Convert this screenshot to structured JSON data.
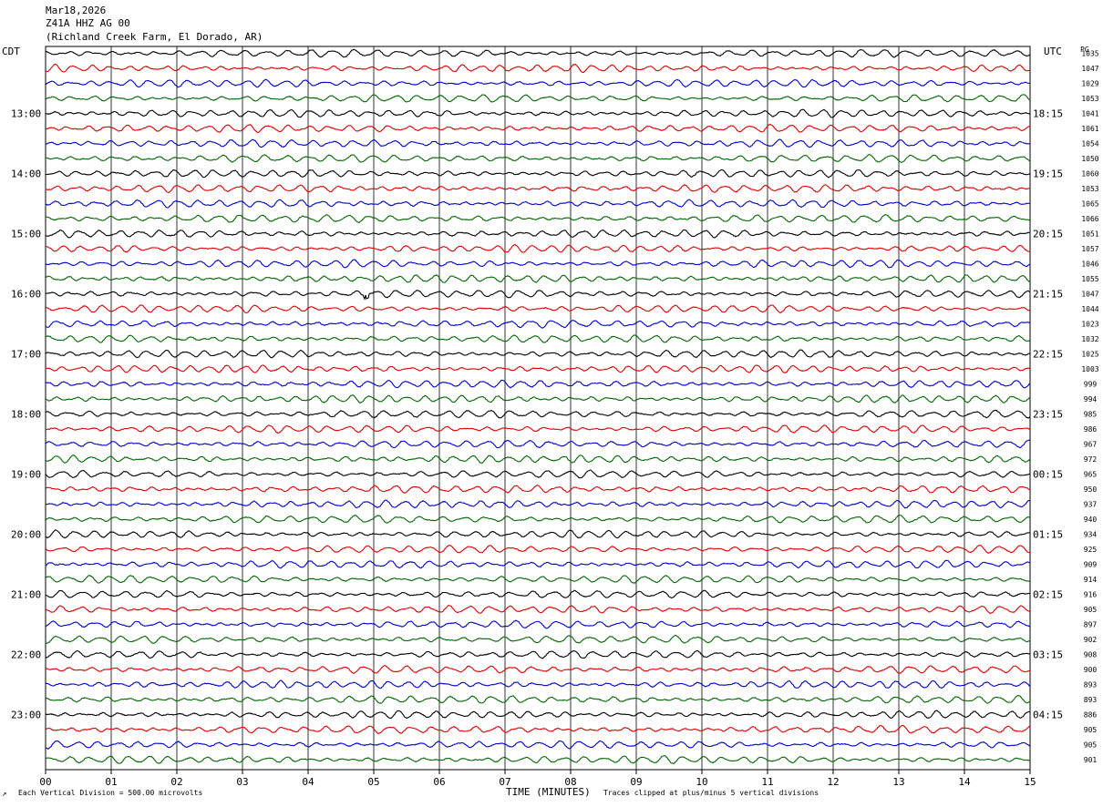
{
  "header": {
    "date": "Mar18,2026",
    "station": "Z41A HHZ AG 00",
    "location": "(Richland Creek Farm, El Dorado, AR)"
  },
  "left_timezone": "CDT",
  "right_timezone": "UTC",
  "right_corner_label": "PG",
  "footer": {
    "scale_note": "Each Vertical Division =  500.00 microvolts",
    "clip_note": "Traces clipped at plus/minus 5 vertical divisions",
    "corner_mark": "↗"
  },
  "colors": {
    "trace_cycle": [
      "#000000",
      "#dd0000",
      "#0000cc",
      "#006600"
    ],
    "grid": "#000000"
  },
  "chart_data": {
    "type": "line",
    "title": "Z41A HHZ AG 00",
    "xlabel": "TIME (MINUTES)",
    "x_ticks": [
      "00",
      "01",
      "02",
      "03",
      "04",
      "05",
      "06",
      "07",
      "08",
      "09",
      "10",
      "11",
      "12",
      "13",
      "14",
      "15"
    ],
    "xlim": [
      0,
      15
    ],
    "left_hour_labels": [
      "13:00",
      "14:00",
      "15:00",
      "16:00",
      "17:00",
      "18:00",
      "19:00",
      "20:00",
      "21:00",
      "22:00",
      "23:00"
    ],
    "right_hour_labels": [
      "18:15",
      "19:15",
      "20:15",
      "21:15",
      "22:15",
      "23:15",
      "00:15",
      "01:15",
      "02:15",
      "03:15",
      "04:15"
    ],
    "row_values": [
      1035,
      1047,
      1029,
      1053,
      1041,
      1061,
      1054,
      1050,
      1060,
      1053,
      1065,
      1066,
      1051,
      1057,
      1046,
      1055,
      1047,
      1044,
      1023,
      1032,
      1025,
      1003,
      999,
      994,
      985,
      986,
      967,
      972,
      965,
      950,
      937,
      940,
      934,
      925,
      909,
      914,
      916,
      905,
      897,
      902,
      908,
      900,
      893,
      893,
      886,
      905,
      905,
      901
    ],
    "traces_per_hour": 4,
    "minutes_per_trace": 15,
    "events": [
      {
        "row": 16,
        "minute": 4.9,
        "label": "local spike"
      }
    ]
  }
}
